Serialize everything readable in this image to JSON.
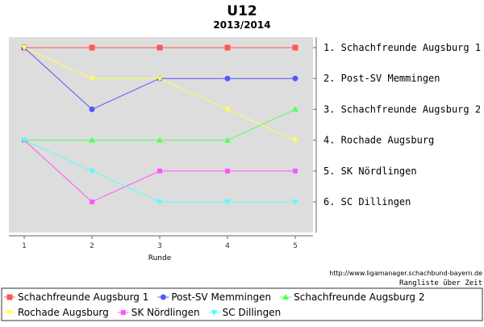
{
  "chart_data": {
    "type": "line",
    "title": "U12",
    "subtitle": "2013/2014",
    "xlabel": "Runde",
    "x": [
      1,
      2,
      3,
      4,
      5
    ],
    "ylim": [
      1,
      6
    ],
    "y_inverted": true,
    "y_tick_labels": [
      "1. Schachfreunde Augsburg 1",
      "2. Post-SV Memmingen",
      "3. Schachfreunde Augsburg 2",
      "4. Rochade Augsburg",
      "5. SK Nördlingen",
      "6. SC Dillingen"
    ],
    "grid": false,
    "plot_background": "#dddddd",
    "legend_position": "bottom",
    "series": [
      {
        "name": "Schachfreunde Augsburg 1",
        "values": [
          1,
          1,
          1,
          1,
          1
        ],
        "color": "#ff5555",
        "marker": "square"
      },
      {
        "name": "Post-SV Memmingen",
        "values": [
          1,
          3,
          2,
          2,
          2
        ],
        "color": "#5555ff",
        "marker": "circle"
      },
      {
        "name": "Schachfreunde Augsburg 2",
        "values": [
          4,
          4,
          4,
          4,
          3
        ],
        "color": "#55ff55",
        "marker": "triangle-up"
      },
      {
        "name": "Rochade Augsburg",
        "values": [
          1,
          2,
          2,
          3,
          4
        ],
        "color": "#ffff55",
        "marker": "triangle-down"
      },
      {
        "name": "SK Nördlingen",
        "values": [
          4,
          6,
          5,
          5,
          5
        ],
        "color": "#ff55ff",
        "marker": "square-small"
      },
      {
        "name": "SC Dillingen",
        "values": [
          4,
          5,
          6,
          6,
          6
        ],
        "color": "#55ffff",
        "marker": "triangle-down"
      }
    ]
  },
  "footer": {
    "url": "http://www.ligamanager.schachbund-bayern.de",
    "caption": "Rangliste über Zeit"
  }
}
